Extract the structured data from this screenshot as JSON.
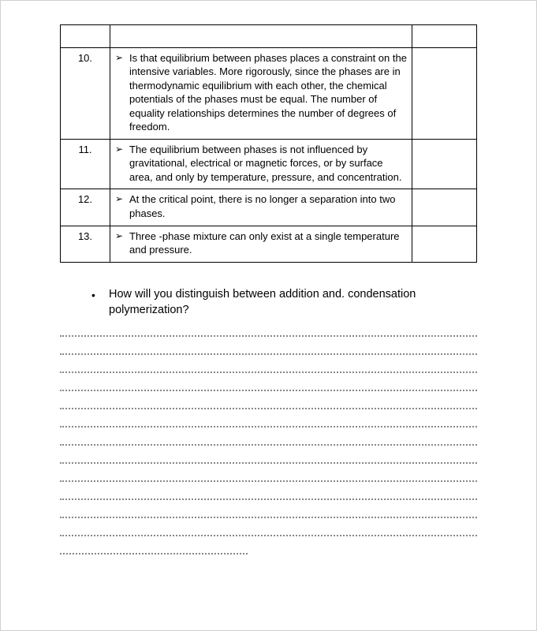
{
  "table": {
    "rows": [
      {
        "num": "10.",
        "text": "Is that equilibrium between phases places a constraint on the intensive variables. More rigorously, since the phases are in thermodynamic equilibrium with each other, the chemical potentials of the phases must be equal. The number of equality relationships determines the number of degrees of freedom."
      },
      {
        "num": "11.",
        "text": "The equilibrium between phases is not influenced by gravitational, electrical or magnetic forces, or by surface area, and only by temperature, pressure, and concentration."
      },
      {
        "num": "12.",
        "text": "At the critical point, there is no longer a separation into two phases."
      },
      {
        "num": "13.",
        "text": "Three -phase mixture can only exist at a single temperature and pressure."
      }
    ],
    "arrow_glyph": "➢"
  },
  "question": {
    "bullet_glyph": "•",
    "text": "How will you distinguish between addition and. condensation polymerization?"
  },
  "style": {
    "page_bg": "#ffffff",
    "border_color": "#000000",
    "text_color": "#000000",
    "dotted_color": "#888888",
    "font_size_table": 13,
    "font_size_question": 14.5
  }
}
